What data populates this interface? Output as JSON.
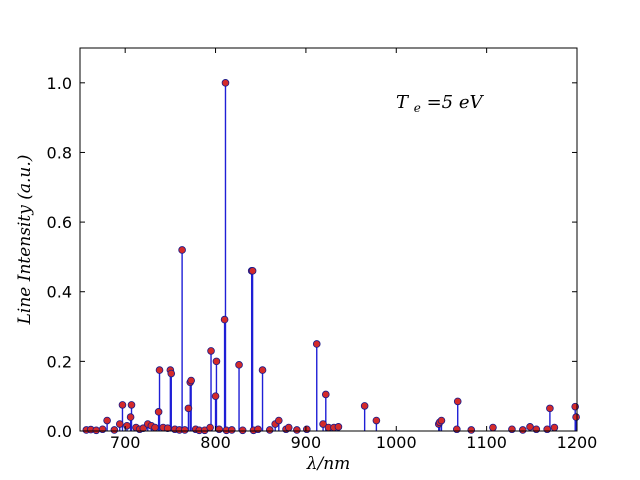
{
  "chart_data": {
    "type": "scatter",
    "title": "",
    "xlabel": "λ/nm",
    "ylabel": "Line Intensity (a.u.)",
    "xlim": [
      650,
      1200
    ],
    "ylim": [
      0,
      1.1
    ],
    "grid": false,
    "x_ticks": [
      700,
      800,
      900,
      1000,
      1100,
      1200
    ],
    "x_tick_labels": [
      "700",
      "800",
      "900",
      "1000",
      "1100",
      "1200"
    ],
    "y_ticks": [
      0.0,
      0.2,
      0.4,
      0.6,
      0.8,
      1.0
    ],
    "y_tick_labels": [
      "0.0",
      "0.2",
      "0.4",
      "0.6",
      "0.8",
      "1.0"
    ],
    "annotation": {
      "text_main": "T",
      "text_sub": "e",
      "text_rest": " =5 eV"
    },
    "colors": {
      "stem": "#1f1fd6",
      "marker_fill": "#d42a2a",
      "marker_edge": "#1a1a8a",
      "frame": "#000000"
    },
    "series": [
      {
        "x": [
          657,
          662,
          668,
          675,
          680,
          688,
          694,
          697,
          702,
          706,
          707,
          712,
          716,
          720,
          725,
          729,
          733,
          737,
          738,
          742,
          747,
          750,
          751,
          755,
          760,
          763,
          766,
          770,
          772,
          773,
          778,
          782,
          788,
          794,
          795,
          800,
          801,
          804,
          810,
          811,
          812,
          818,
          826,
          830,
          840,
          841,
          842,
          847,
          852,
          860,
          866,
          870,
          878,
          881,
          890,
          901,
          912,
          919,
          922,
          925,
          931,
          936,
          965,
          978,
          1047,
          1048,
          1050,
          1067,
          1068,
          1083,
          1107,
          1128,
          1140,
          1148,
          1155,
          1167,
          1170,
          1175,
          1198,
          1199
        ],
        "y": [
          0.003,
          0.004,
          0.002,
          0.005,
          0.03,
          0.003,
          0.02,
          0.075,
          0.015,
          0.04,
          0.075,
          0.01,
          0.005,
          0.008,
          0.02,
          0.015,
          0.01,
          0.055,
          0.175,
          0.01,
          0.008,
          0.175,
          0.165,
          0.005,
          0.003,
          0.52,
          0.003,
          0.065,
          0.14,
          0.145,
          0.005,
          0.002,
          0.002,
          0.01,
          0.23,
          0.1,
          0.2,
          0.005,
          0.32,
          1.0,
          0.002,
          0.003,
          0.19,
          0.002,
          0.46,
          0.46,
          0.002,
          0.005,
          0.175,
          0.003,
          0.02,
          0.03,
          0.005,
          0.01,
          0.003,
          0.005,
          0.25,
          0.02,
          0.105,
          0.01,
          0.01,
          0.012,
          0.072,
          0.03,
          0.02,
          0.025,
          0.03,
          0.005,
          0.085,
          0.003,
          0.01,
          0.005,
          0.003,
          0.012,
          0.005,
          0.005,
          0.065,
          0.01,
          0.07,
          0.04
        ]
      }
    ]
  }
}
